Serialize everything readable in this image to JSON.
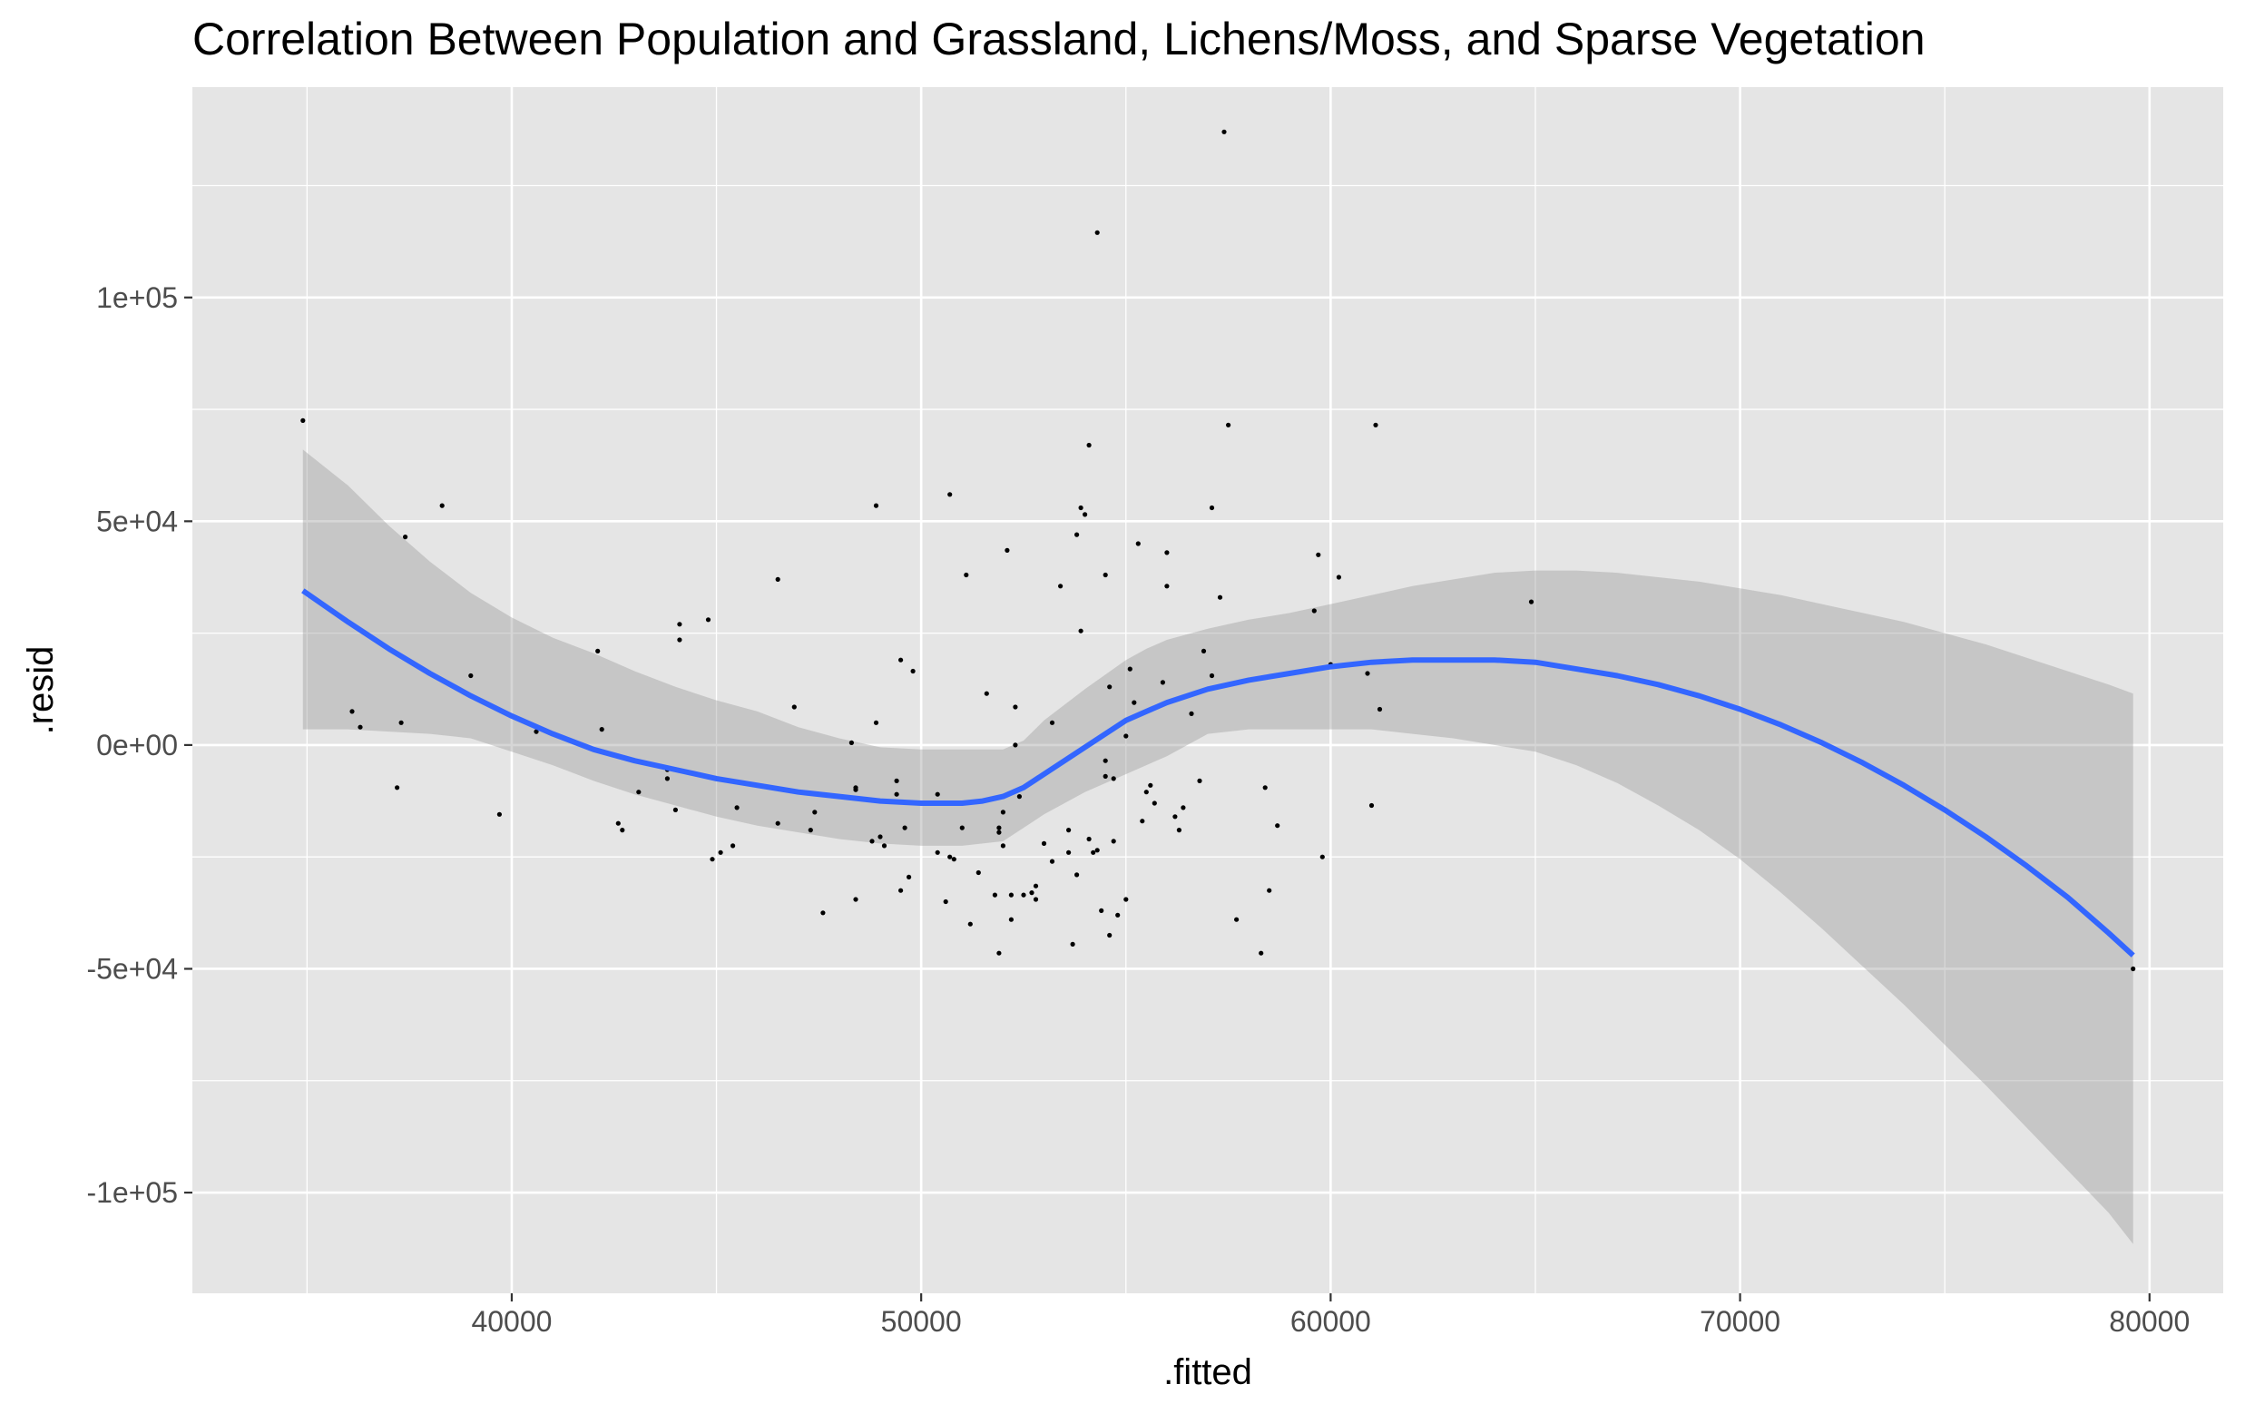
{
  "chart_data": {
    "type": "scatter",
    "title": "Correlation Between Population and Grassland, Lichens/Moss, and Sparse Vegetation",
    "xlabel": ".fitted",
    "ylabel": ".resid",
    "xlim": [
      32200,
      81800
    ],
    "ylim": [
      -122500,
      147000
    ],
    "x_ticks": [
      40000,
      50000,
      60000,
      70000,
      80000
    ],
    "x_tick_labels": [
      "40000",
      "50000",
      "60000",
      "70000",
      "80000"
    ],
    "y_ticks": [
      -100000,
      -50000,
      0,
      50000,
      100000
    ],
    "y_tick_labels": [
      "-1e+05",
      "-5e+04",
      "0e+00",
      "5e+04",
      "1e+05"
    ],
    "grid": true,
    "colors": {
      "panel": "#e5e5e5",
      "grid": "#ffffff",
      "points": "#000000",
      "smooth_line": "#3366ff",
      "ribbon": "#999999"
    },
    "points": [
      [
        34900,
        72500
      ],
      [
        36100,
        7500
      ],
      [
        36300,
        4000
      ],
      [
        37200,
        -9500
      ],
      [
        37300,
        5000
      ],
      [
        37400,
        46500
      ],
      [
        38300,
        53500
      ],
      [
        39000,
        15500
      ],
      [
        39700,
        -15500
      ],
      [
        40600,
        3000
      ],
      [
        42100,
        21000
      ],
      [
        42200,
        3500
      ],
      [
        42600,
        -17500
      ],
      [
        42700,
        -19000
      ],
      [
        43100,
        -10500
      ],
      [
        43800,
        -5500
      ],
      [
        43800,
        -7500
      ],
      [
        44000,
        -14500
      ],
      [
        44100,
        27000
      ],
      [
        44100,
        23500
      ],
      [
        44800,
        28000
      ],
      [
        44900,
        -25500
      ],
      [
        45100,
        -24000
      ],
      [
        45400,
        -22500
      ],
      [
        45500,
        -14000
      ],
      [
        46500,
        37000
      ],
      [
        46500,
        -17500
      ],
      [
        46900,
        8500
      ],
      [
        47300,
        -19000
      ],
      [
        47400,
        -15000
      ],
      [
        47600,
        -37500
      ],
      [
        48300,
        500
      ],
      [
        48400,
        -9500
      ],
      [
        48400,
        -10000
      ],
      [
        48400,
        -34500
      ],
      [
        48800,
        -21500
      ],
      [
        48900,
        53500
      ],
      [
        48900,
        5000
      ],
      [
        49000,
        -20500
      ],
      [
        49100,
        -22500
      ],
      [
        49400,
        -8000
      ],
      [
        49400,
        -11000
      ],
      [
        49500,
        19000
      ],
      [
        49500,
        -32500
      ],
      [
        49600,
        -18500
      ],
      [
        49700,
        -29500
      ],
      [
        49800,
        16500
      ],
      [
        50400,
        -11000
      ],
      [
        50400,
        -24000
      ],
      [
        50600,
        -35000
      ],
      [
        50700,
        56000
      ],
      [
        50700,
        -25000
      ],
      [
        50800,
        -25500
      ],
      [
        51000,
        -18500
      ],
      [
        51100,
        38000
      ],
      [
        51200,
        -40000
      ],
      [
        51400,
        -28500
      ],
      [
        51600,
        11500
      ],
      [
        51800,
        -33500
      ],
      [
        51900,
        -46500
      ],
      [
        51900,
        -18500
      ],
      [
        51900,
        -19500
      ],
      [
        52000,
        -15000
      ],
      [
        52000,
        -22500
      ],
      [
        52100,
        43500
      ],
      [
        52200,
        -39000
      ],
      [
        52200,
        -33500
      ],
      [
        52300,
        0
      ],
      [
        52300,
        8500
      ],
      [
        52400,
        -11500
      ],
      [
        52500,
        -33500
      ],
      [
        52700,
        -33000
      ],
      [
        52800,
        -34500
      ],
      [
        52800,
        -31500
      ],
      [
        53000,
        -22000
      ],
      [
        53200,
        5000
      ],
      [
        53200,
        -26000
      ],
      [
        53400,
        35500
      ],
      [
        53600,
        -19000
      ],
      [
        53600,
        -24000
      ],
      [
        53700,
        -44500
      ],
      [
        53800,
        -29000
      ],
      [
        53800,
        47000
      ],
      [
        53900,
        25500
      ],
      [
        53900,
        53000
      ],
      [
        54000,
        51500
      ],
      [
        54100,
        67000
      ],
      [
        54100,
        -21000
      ],
      [
        54200,
        -24000
      ],
      [
        54300,
        -23500
      ],
      [
        54300,
        114500
      ],
      [
        54400,
        -37000
      ],
      [
        54500,
        38000
      ],
      [
        54500,
        -3500
      ],
      [
        54500,
        -7000
      ],
      [
        54600,
        13000
      ],
      [
        54600,
        -42500
      ],
      [
        54700,
        -7500
      ],
      [
        54700,
        -21500
      ],
      [
        54800,
        -38000
      ],
      [
        55000,
        -34500
      ],
      [
        55000,
        2000
      ],
      [
        55100,
        17000
      ],
      [
        55200,
        9500
      ],
      [
        55300,
        45000
      ],
      [
        55400,
        -17000
      ],
      [
        55500,
        -10500
      ],
      [
        55600,
        -9000
      ],
      [
        55700,
        -13000
      ],
      [
        55900,
        14000
      ],
      [
        56000,
        43000
      ],
      [
        56000,
        35500
      ],
      [
        56200,
        -16000
      ],
      [
        56300,
        -19000
      ],
      [
        56400,
        -14000
      ],
      [
        56600,
        7000
      ],
      [
        56800,
        -8000
      ],
      [
        56900,
        21000
      ],
      [
        57100,
        53000
      ],
      [
        57100,
        15500
      ],
      [
        57300,
        33000
      ],
      [
        57400,
        137000
      ],
      [
        57500,
        71500
      ],
      [
        57700,
        -39000
      ],
      [
        58300,
        -46500
      ],
      [
        58400,
        -9500
      ],
      [
        58500,
        -32500
      ],
      [
        58700,
        -18000
      ],
      [
        59600,
        30000
      ],
      [
        59700,
        42500
      ],
      [
        59800,
        -25000
      ],
      [
        60000,
        18000
      ],
      [
        60200,
        37500
      ],
      [
        60900,
        16000
      ],
      [
        61000,
        -13500
      ],
      [
        61100,
        71500
      ],
      [
        61200,
        8000
      ],
      [
        64900,
        32000
      ],
      [
        79600,
        -50000
      ]
    ],
    "smooth": {
      "method": "loess",
      "x": [
        34900,
        36000,
        37000,
        38000,
        39000,
        40000,
        41000,
        42000,
        43000,
        44000,
        45000,
        46000,
        47000,
        48000,
        49000,
        50000,
        50500,
        51000,
        51500,
        52000,
        52500,
        53000,
        54000,
        55000,
        55500,
        56000,
        57000,
        58000,
        59000,
        60000,
        61000,
        62000,
        63000,
        64000,
        65000,
        66000,
        67000,
        68000,
        69000,
        70000,
        71000,
        72000,
        73000,
        74000,
        75000,
        76000,
        77000,
        78000,
        79000,
        79600
      ],
      "y": [
        34500,
        27500,
        21500,
        16000,
        11000,
        6500,
        2500,
        -1000,
        -3500,
        -5500,
        -7500,
        -9000,
        -10500,
        -11500,
        -12500,
        -13000,
        -13000,
        -13000,
        -12500,
        -11500,
        -9500,
        -6500,
        -500,
        5500,
        7500,
        9500,
        12500,
        14500,
        16000,
        17500,
        18500,
        19000,
        19000,
        19000,
        18500,
        17000,
        15500,
        13500,
        11000,
        8000,
        4500,
        500,
        -4000,
        -9000,
        -14500,
        -20500,
        -27000,
        -34000,
        -42000,
        -47000
      ],
      "upper": [
        66000,
        58000,
        49000,
        41000,
        34000,
        28500,
        24000,
        20500,
        16500,
        13000,
        10000,
        7500,
        4000,
        1500,
        -500,
        -1000,
        -1000,
        -1000,
        -1000,
        -1000,
        1000,
        5500,
        12500,
        19000,
        21500,
        23500,
        26000,
        28000,
        29500,
        31500,
        33500,
        35500,
        37000,
        38500,
        39000,
        39000,
        38500,
        37500,
        36500,
        35000,
        33500,
        31500,
        29500,
        27500,
        25000,
        22500,
        19500,
        16500,
        13500,
        11500
      ],
      "lower": [
        3500,
        3500,
        3000,
        2500,
        1500,
        -1500,
        -4500,
        -8000,
        -11000,
        -13500,
        -16000,
        -18000,
        -19500,
        -21000,
        -22000,
        -22500,
        -22500,
        -22500,
        -22000,
        -21500,
        -18500,
        -15500,
        -10500,
        -6500,
        -4500,
        -2500,
        2500,
        3500,
        3500,
        3500,
        3500,
        2500,
        1500,
        0,
        -1500,
        -4500,
        -8500,
        -13500,
        -19000,
        -25500,
        -33000,
        -41000,
        -49500,
        -58000,
        -67000,
        -76000,
        -85500,
        -95000,
        -104500,
        -111500
      ]
    }
  }
}
